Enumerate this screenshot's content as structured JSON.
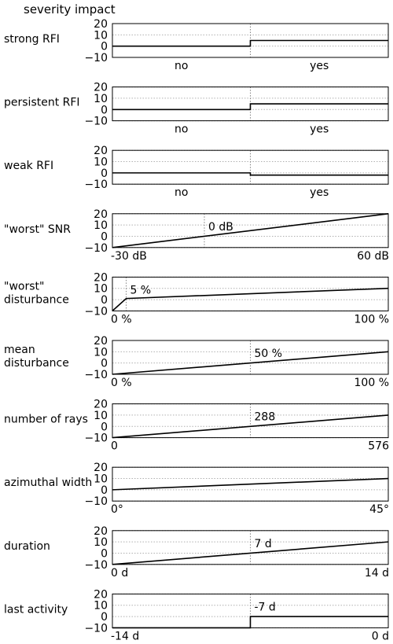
{
  "header": "severity impact",
  "chart_data": [
    {
      "type": "line",
      "label": "strong RFI",
      "step": true,
      "ylim": [
        -10,
        20
      ],
      "yticks": [
        20,
        10,
        0,
        -10
      ],
      "x": [
        0,
        0.5,
        0.5,
        1
      ],
      "y": [
        0,
        0,
        5,
        5
      ],
      "marker_x": 0.5,
      "marker_label": "",
      "left_label": "no",
      "right_label": "yes",
      "bottom_style": "categories"
    },
    {
      "type": "line",
      "label": "persistent RFI",
      "step": true,
      "ylim": [
        -10,
        20
      ],
      "yticks": [
        20,
        10,
        0,
        -10
      ],
      "x": [
        0,
        0.5,
        0.5,
        1
      ],
      "y": [
        0,
        0,
        5,
        5
      ],
      "marker_x": 0.5,
      "marker_label": "",
      "left_label": "no",
      "right_label": "yes",
      "bottom_style": "categories"
    },
    {
      "type": "line",
      "label": "weak RFI",
      "step": true,
      "ylim": [
        -10,
        20
      ],
      "yticks": [
        20,
        10,
        0,
        -10
      ],
      "x": [
        0,
        0.5,
        0.5,
        1
      ],
      "y": [
        0,
        0,
        -2,
        -2
      ],
      "marker_x": 0.5,
      "marker_label": "",
      "left_label": "no",
      "right_label": "yes",
      "bottom_style": "categories"
    },
    {
      "type": "line",
      "label": "\"worst\" SNR",
      "ylim": [
        -10,
        20
      ],
      "yticks": [
        20,
        10,
        0,
        -10
      ],
      "x": [
        -30,
        60
      ],
      "y": [
        -10,
        20
      ],
      "xlim": [
        -30,
        60
      ],
      "marker_x": 0,
      "marker_label": "0 dB",
      "left_label": "-30 dB",
      "right_label": "60 dB",
      "bottom_style": "ends"
    },
    {
      "type": "line",
      "label": "\"worst\" disturbance",
      "ylim": [
        -10,
        20
      ],
      "yticks": [
        20,
        10,
        0,
        -10
      ],
      "x": [
        0,
        5,
        100
      ],
      "y": [
        -10,
        1,
        10
      ],
      "xlim": [
        0,
        100
      ],
      "marker_x": 5,
      "marker_label": "5 %",
      "left_label": "0 %",
      "right_label": "100 %",
      "bottom_style": "ends"
    },
    {
      "type": "line",
      "label": "mean disturbance",
      "ylim": [
        -10,
        20
      ],
      "yticks": [
        20,
        10,
        0,
        -10
      ],
      "x": [
        0,
        100
      ],
      "y": [
        -10,
        10
      ],
      "xlim": [
        0,
        100
      ],
      "marker_x": 50,
      "marker_label": "50 %",
      "left_label": "0 %",
      "right_label": "100 %",
      "bottom_style": "ends"
    },
    {
      "type": "line",
      "label": "number of rays",
      "ylim": [
        -10,
        20
      ],
      "yticks": [
        20,
        10,
        0,
        -10
      ],
      "x": [
        0,
        576
      ],
      "y": [
        -10,
        10
      ],
      "xlim": [
        0,
        576
      ],
      "marker_x": 288,
      "marker_label": "288",
      "left_label": "0",
      "right_label": "576",
      "bottom_style": "ends"
    },
    {
      "type": "line",
      "label": "azimuthal width",
      "ylim": [
        -10,
        20
      ],
      "yticks": [
        20,
        10,
        0,
        -10
      ],
      "x": [
        0,
        45
      ],
      "y": [
        0,
        10
      ],
      "xlim": [
        0,
        45
      ],
      "marker_x": null,
      "marker_label": "",
      "left_label": "0°",
      "right_label": "45°",
      "bottom_style": "ends"
    },
    {
      "type": "line",
      "label": "duration",
      "ylim": [
        -10,
        20
      ],
      "yticks": [
        20,
        10,
        0,
        -10
      ],
      "x": [
        0,
        14
      ],
      "y": [
        -10,
        10
      ],
      "xlim": [
        0,
        14
      ],
      "marker_x": 7,
      "marker_label": "7 d",
      "left_label": "0 d",
      "right_label": "14 d",
      "bottom_style": "ends"
    },
    {
      "type": "line",
      "label": "last activity",
      "step": true,
      "ylim": [
        -10,
        20
      ],
      "yticks": [
        20,
        10,
        0,
        -10
      ],
      "x": [
        -14,
        -7,
        -7,
        0
      ],
      "y": [
        -10,
        -10,
        0,
        0
      ],
      "xlim": [
        -14,
        0
      ],
      "marker_x": -7,
      "marker_label": "-7 d",
      "left_label": "-14 d",
      "right_label": "0 d",
      "bottom_style": "ends"
    }
  ]
}
